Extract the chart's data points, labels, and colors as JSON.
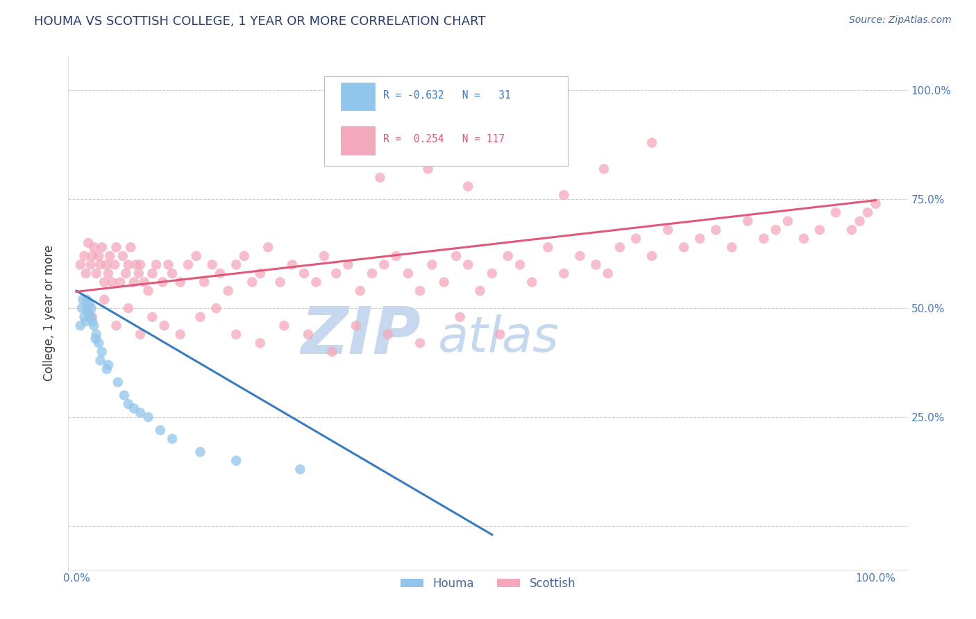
{
  "title": "HOUMA VS SCOTTISH COLLEGE, 1 YEAR OR MORE CORRELATION CHART",
  "ylabel": "College, 1 year or more",
  "source": "Source: ZipAtlas.com",
  "r_houma": -0.632,
  "n_houma": 31,
  "r_scottish": 0.254,
  "n_scottish": 117,
  "houma_color": "#92c5eb",
  "scottish_color": "#f4a8bc",
  "houma_line_color": "#3a7abf",
  "scottish_line_color": "#e05878",
  "watermark_zip_color": "#c5d8ed",
  "watermark_atlas_color": "#c5d8ed",
  "title_color": "#2d3f6e",
  "axis_label_color": "#4a6a9a",
  "tick_color": "#4a7ab5",
  "background_color": "#ffffff",
  "grid_color": "#c8c8c8",
  "legend_border_color": "#cccccc",
  "houma_line_x0": 0.0,
  "houma_line_y0": 0.54,
  "houma_line_x1": 0.52,
  "houma_line_y1": -0.02,
  "scottish_line_x0": 0.0,
  "scottish_line_y0": 0.538,
  "scottish_line_x1": 1.0,
  "scottish_line_y1": 0.748,
  "xlim_min": -0.01,
  "xlim_max": 1.04,
  "ylim_min": -0.1,
  "ylim_max": 1.08,
  "houma_x": [
    0.005,
    0.007,
    0.008,
    0.01,
    0.012,
    0.013,
    0.013,
    0.015,
    0.016,
    0.018,
    0.019,
    0.02,
    0.022,
    0.024,
    0.025,
    0.028,
    0.03,
    0.032,
    0.038,
    0.04,
    0.052,
    0.06,
    0.065,
    0.072,
    0.08,
    0.09,
    0.105,
    0.12,
    0.155,
    0.2,
    0.28
  ],
  "houma_y": [
    0.46,
    0.5,
    0.52,
    0.48,
    0.47,
    0.5,
    0.52,
    0.49,
    0.51,
    0.48,
    0.5,
    0.47,
    0.46,
    0.43,
    0.44,
    0.42,
    0.38,
    0.4,
    0.36,
    0.37,
    0.33,
    0.3,
    0.28,
    0.27,
    0.26,
    0.25,
    0.22,
    0.2,
    0.17,
    0.15,
    0.13
  ],
  "scottish_x": [
    0.005,
    0.01,
    0.012,
    0.015,
    0.018,
    0.02,
    0.022,
    0.025,
    0.028,
    0.03,
    0.032,
    0.035,
    0.038,
    0.04,
    0.042,
    0.045,
    0.048,
    0.05,
    0.055,
    0.058,
    0.062,
    0.065,
    0.068,
    0.072,
    0.075,
    0.078,
    0.08,
    0.085,
    0.09,
    0.095,
    0.1,
    0.108,
    0.115,
    0.12,
    0.13,
    0.14,
    0.15,
    0.16,
    0.17,
    0.18,
    0.19,
    0.2,
    0.21,
    0.22,
    0.23,
    0.24,
    0.255,
    0.27,
    0.285,
    0.3,
    0.31,
    0.325,
    0.34,
    0.355,
    0.37,
    0.385,
    0.4,
    0.415,
    0.43,
    0.445,
    0.46,
    0.475,
    0.49,
    0.505,
    0.52,
    0.54,
    0.555,
    0.57,
    0.59,
    0.61,
    0.63,
    0.65,
    0.665,
    0.68,
    0.7,
    0.72,
    0.74,
    0.76,
    0.78,
    0.8,
    0.82,
    0.84,
    0.86,
    0.875,
    0.89,
    0.91,
    0.93,
    0.95,
    0.97,
    0.98,
    0.99,
    1.0,
    0.02,
    0.035,
    0.05,
    0.065,
    0.08,
    0.095,
    0.11,
    0.13,
    0.155,
    0.175,
    0.2,
    0.23,
    0.26,
    0.29,
    0.32,
    0.35,
    0.39,
    0.43,
    0.48,
    0.53,
    0.38,
    0.44,
    0.49,
    0.555,
    0.61,
    0.66,
    0.72
  ],
  "scottish_y": [
    0.6,
    0.62,
    0.58,
    0.65,
    0.6,
    0.62,
    0.64,
    0.58,
    0.62,
    0.6,
    0.64,
    0.56,
    0.6,
    0.58,
    0.62,
    0.56,
    0.6,
    0.64,
    0.56,
    0.62,
    0.58,
    0.6,
    0.64,
    0.56,
    0.6,
    0.58,
    0.6,
    0.56,
    0.54,
    0.58,
    0.6,
    0.56,
    0.6,
    0.58,
    0.56,
    0.6,
    0.62,
    0.56,
    0.6,
    0.58,
    0.54,
    0.6,
    0.62,
    0.56,
    0.58,
    0.64,
    0.56,
    0.6,
    0.58,
    0.56,
    0.62,
    0.58,
    0.6,
    0.54,
    0.58,
    0.6,
    0.62,
    0.58,
    0.54,
    0.6,
    0.56,
    0.62,
    0.6,
    0.54,
    0.58,
    0.62,
    0.6,
    0.56,
    0.64,
    0.58,
    0.62,
    0.6,
    0.58,
    0.64,
    0.66,
    0.62,
    0.68,
    0.64,
    0.66,
    0.68,
    0.64,
    0.7,
    0.66,
    0.68,
    0.7,
    0.66,
    0.68,
    0.72,
    0.68,
    0.7,
    0.72,
    0.74,
    0.48,
    0.52,
    0.46,
    0.5,
    0.44,
    0.48,
    0.46,
    0.44,
    0.48,
    0.5,
    0.44,
    0.42,
    0.46,
    0.44,
    0.4,
    0.46,
    0.44,
    0.42,
    0.48,
    0.44,
    0.8,
    0.82,
    0.78,
    0.84,
    0.76,
    0.82,
    0.88
  ]
}
